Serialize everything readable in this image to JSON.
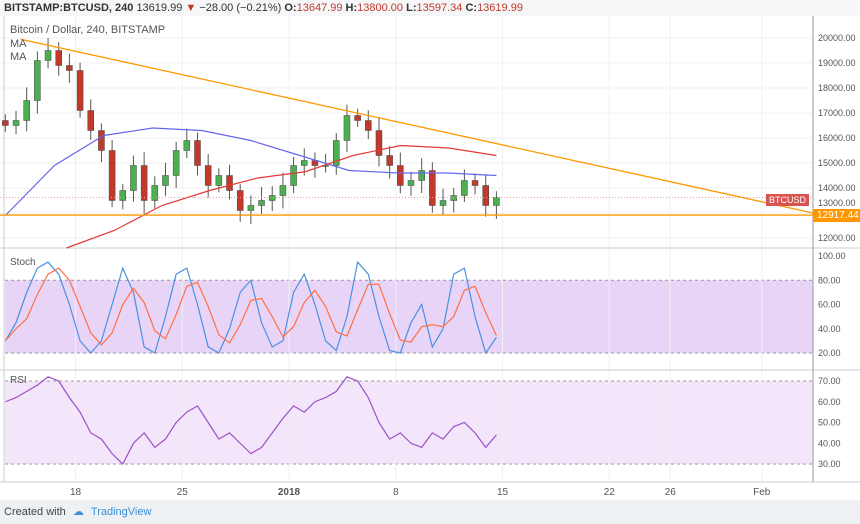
{
  "header": {
    "symbol": "BITSTAMP:BTCUSD, 240",
    "last": "13619.99",
    "change": "−28.00 (−0.21%)",
    "o_label": "O:",
    "o": "13647.99",
    "h_label": "H:",
    "h": "13800.00",
    "l_label": "L:",
    "l": "13597.34",
    "c_label": "C:",
    "c": "13619.99"
  },
  "chart_title": "Bitcoin / Dollar, 240, BITSTAMP",
  "ma_labels": [
    "MA",
    "MA"
  ],
  "stoch_label": "Stoch",
  "rsi_label": "RSI",
  "price_tag": "BTCUSD",
  "support_tag": "12917.44",
  "footer": {
    "created_with": "Created with",
    "brand": "TradingView"
  },
  "colors": {
    "up": "#4caf50",
    "down": "#c0392b",
    "trend": "#ff9800",
    "ma_fast": "#6666ee",
    "ma_slow": "#e53935",
    "stoch_k": "#4a90e2",
    "stoch_d": "#ff7043",
    "rsi": "#9c4fc7"
  },
  "chart_data": {
    "type": "candlestick",
    "price_ticks": [
      "20000.00",
      "19000.00",
      "18000.00",
      "17000.00",
      "16000.00",
      "15000.00",
      "14000.00",
      "13000.00",
      "12000.00"
    ],
    "price_range": [
      11600,
      20500
    ],
    "time_labels": [
      {
        "label": "18",
        "day": 18
      },
      {
        "label": "25",
        "day": 25
      },
      {
        "label": "2018",
        "day": 32
      },
      {
        "label": "8",
        "day": 39
      },
      {
        "label": "15",
        "day": 46
      },
      {
        "label": "22",
        "day": 53
      },
      {
        "label": "26",
        "day": 57
      },
      {
        "label": "Feb",
        "day": 63
      }
    ],
    "start_day": 13.4,
    "step_day": 0.7,
    "closes": [
      16500,
      16700,
      17500,
      19100,
      19500,
      18900,
      18700,
      17100,
      16300,
      15500,
      13500,
      13900,
      14900,
      13500,
      14100,
      14500,
      15500,
      15900,
      14900,
      14100,
      14500,
      13900,
      13100,
      13300,
      13500,
      13700,
      14100,
      14900,
      15100,
      14900,
      14900,
      15900,
      16900,
      16700,
      16300,
      15300,
      14900,
      14100,
      14300,
      14700,
      13300,
      13500,
      13700,
      14300,
      14100,
      13300,
      13620
    ],
    "ma_fast": [
      12900,
      14900,
      16100,
      16400,
      16300,
      15900,
      15300,
      14700,
      14600,
      14600,
      14500
    ],
    "ma_slow_start_day": 17.4,
    "ma_slow": [
      11600,
      12300,
      13300,
      13900,
      14400,
      14650,
      15300,
      15700,
      15600,
      15300
    ],
    "trendline": {
      "from": {
        "day": 14.4,
        "price": 19950
      },
      "to": {
        "day": 66,
        "price": 13000
      }
    },
    "support": 12917.44,
    "stoch": {
      "ticks": [
        "100.00",
        "80.00",
        "60.00",
        "40.00",
        "20.00"
      ],
      "band": [
        20,
        80
      ],
      "k": [
        30,
        45,
        70,
        90,
        95,
        85,
        60,
        30,
        20,
        30,
        60,
        90,
        70,
        25,
        20,
        50,
        85,
        90,
        60,
        25,
        20,
        40,
        70,
        80,
        45,
        25,
        30,
        70,
        85,
        60,
        30,
        22,
        50,
        95,
        85,
        50,
        22,
        20,
        45,
        60,
        25,
        40,
        85,
        90,
        50,
        20,
        33
      ]
    },
    "rsi": {
      "ticks": [
        "70.00",
        "60.00",
        "50.00",
        "40.00",
        "30.00"
      ],
      "band": [
        30,
        70
      ],
      "values": [
        60,
        62,
        65,
        68,
        72,
        70,
        62,
        55,
        45,
        42,
        35,
        30,
        40,
        45,
        38,
        42,
        50,
        55,
        58,
        50,
        42,
        45,
        40,
        35,
        38,
        45,
        52,
        58,
        55,
        60,
        62,
        65,
        72,
        70,
        62,
        50,
        42,
        45,
        40,
        38,
        45,
        42,
        48,
        50,
        45,
        38,
        44
      ]
    }
  }
}
